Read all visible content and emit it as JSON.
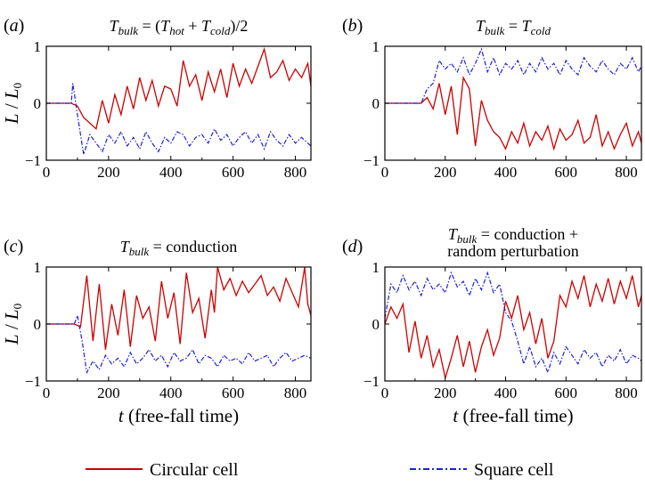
{
  "colors": {
    "circular": "#cc0000",
    "square": "#1f1fd6",
    "axis": "#000000"
  },
  "legend": {
    "circular": "Circular cell",
    "square": "Square cell"
  },
  "panels": [
    {
      "label": "(a)",
      "title": [
        "T",
        "bulk",
        " = (",
        "T",
        "hot",
        " + ",
        "T",
        "cold",
        ")/2"
      ]
    },
    {
      "label": "(b)",
      "title": [
        "T",
        "bulk",
        " = ",
        "T",
        "cold"
      ]
    },
    {
      "label": "(c)",
      "title": [
        "T",
        "bulk",
        " = conduction"
      ]
    },
    {
      "label": "(d)",
      "title": [
        "T",
        "bulk",
        " = conduction +"
      ],
      "title2": "random perturbation"
    }
  ],
  "ylabel": {
    "main": "L",
    "sep": " / ",
    "den": "L",
    "sub": "0"
  },
  "xlabel": {
    "main": "t",
    "rest": " (free-fall time)"
  },
  "chart_data": [
    {
      "type": "line",
      "panel": "a",
      "xlim": [
        0,
        850
      ],
      "ylim": [
        -1,
        1
      ],
      "xticks": [
        0,
        200,
        400,
        600,
        800
      ],
      "yticks": [
        -1,
        0,
        1
      ],
      "series": [
        {
          "name": "Circular cell",
          "x": [
            0,
            80,
            100,
            120,
            140,
            160,
            180,
            200,
            220,
            240,
            260,
            280,
            300,
            320,
            340,
            360,
            380,
            400,
            420,
            440,
            460,
            480,
            500,
            520,
            540,
            560,
            580,
            600,
            620,
            640,
            660,
            680,
            700,
            720,
            740,
            760,
            780,
            800,
            820,
            840,
            850
          ],
          "y": [
            0,
            0,
            -0.05,
            -0.25,
            -0.35,
            -0.45,
            0.05,
            -0.35,
            0.15,
            -0.2,
            0.3,
            -0.1,
            0.45,
            0.05,
            0.4,
            -0.05,
            0.3,
            0.25,
            -0.05,
            0.75,
            0.3,
            0.5,
            0.05,
            0.55,
            0.2,
            0.6,
            0.1,
            0.7,
            0.3,
            0.6,
            0.35,
            0.65,
            0.95,
            0.45,
            0.55,
            0.75,
            0.4,
            0.6,
            0.45,
            0.7,
            0.3
          ]
        },
        {
          "name": "Square cell",
          "x": [
            0,
            80,
            85,
            100,
            120,
            140,
            160,
            180,
            200,
            220,
            240,
            260,
            280,
            300,
            320,
            340,
            360,
            380,
            400,
            420,
            440,
            460,
            480,
            500,
            520,
            540,
            560,
            580,
            600,
            620,
            640,
            660,
            680,
            700,
            720,
            740,
            760,
            780,
            800,
            820,
            850
          ],
          "y": [
            0,
            0,
            0.35,
            -0.2,
            -0.9,
            -0.55,
            -0.7,
            -0.85,
            -0.55,
            -0.7,
            -0.5,
            -0.75,
            -0.6,
            -0.8,
            -0.5,
            -0.7,
            -0.85,
            -0.6,
            -0.7,
            -0.5,
            -0.55,
            -0.75,
            -0.6,
            -0.55,
            -0.7,
            -0.45,
            -0.65,
            -0.55,
            -0.75,
            -0.6,
            -0.5,
            -0.7,
            -0.55,
            -0.8,
            -0.5,
            -0.65,
            -0.75,
            -0.55,
            -0.7,
            -0.6,
            -0.75
          ]
        }
      ]
    },
    {
      "type": "line",
      "panel": "b",
      "xlim": [
        0,
        850
      ],
      "ylim": [
        -1,
        1
      ],
      "xticks": [
        0,
        200,
        400,
        600,
        800
      ],
      "yticks": [
        -1,
        0,
        1
      ],
      "series": [
        {
          "name": "Circular cell",
          "x": [
            0,
            120,
            140,
            160,
            180,
            200,
            220,
            240,
            260,
            280,
            300,
            320,
            340,
            360,
            380,
            400,
            420,
            440,
            460,
            480,
            500,
            520,
            540,
            560,
            580,
            600,
            620,
            640,
            660,
            680,
            700,
            720,
            740,
            760,
            780,
            800,
            820,
            840,
            850
          ],
          "y": [
            0,
            0,
            0.1,
            -0.1,
            0.35,
            -0.2,
            0.3,
            -0.55,
            0.45,
            0.25,
            -0.75,
            0.05,
            -0.3,
            -0.5,
            -0.6,
            -0.8,
            -0.5,
            -0.7,
            -0.35,
            -0.75,
            -0.5,
            -0.65,
            -0.4,
            -0.8,
            -0.45,
            -0.65,
            -0.55,
            -0.3,
            -0.7,
            -0.6,
            -0.2,
            -0.75,
            -0.5,
            -0.8,
            -0.55,
            -0.35,
            -0.75,
            -0.5,
            -0.7
          ]
        },
        {
          "name": "Square cell",
          "x": [
            0,
            120,
            140,
            160,
            180,
            200,
            220,
            240,
            260,
            280,
            300,
            320,
            340,
            360,
            380,
            400,
            420,
            440,
            460,
            480,
            500,
            520,
            540,
            560,
            580,
            600,
            620,
            640,
            660,
            680,
            700,
            720,
            740,
            760,
            780,
            800,
            820,
            840,
            850
          ],
          "y": [
            0,
            0,
            0.25,
            0.35,
            0.75,
            0.6,
            0.7,
            0.55,
            0.8,
            0.5,
            0.7,
            0.95,
            0.55,
            0.8,
            0.5,
            0.7,
            0.6,
            0.75,
            0.5,
            0.7,
            0.55,
            0.8,
            0.6,
            0.7,
            0.5,
            0.75,
            0.6,
            0.5,
            0.8,
            0.65,
            0.55,
            0.75,
            0.6,
            0.5,
            0.7,
            0.6,
            0.8,
            0.55,
            0.65
          ]
        }
      ]
    },
    {
      "type": "line",
      "panel": "c",
      "xlim": [
        0,
        850
      ],
      "ylim": [
        -1,
        1
      ],
      "xticks": [
        0,
        200,
        400,
        600,
        800
      ],
      "yticks": [
        -1,
        0,
        1
      ],
      "series": [
        {
          "name": "Circular cell",
          "x": [
            0,
            90,
            110,
            130,
            150,
            170,
            190,
            210,
            230,
            250,
            270,
            290,
            310,
            330,
            350,
            370,
            390,
            410,
            430,
            450,
            470,
            490,
            510,
            530,
            540,
            550,
            570,
            590,
            610,
            630,
            650,
            670,
            690,
            710,
            730,
            750,
            770,
            790,
            810,
            830,
            840,
            850
          ],
          "y": [
            0,
            0,
            -0.05,
            0.85,
            -0.3,
            0.7,
            -0.45,
            0.35,
            -0.2,
            0.6,
            -0.4,
            0.5,
            0.1,
            0.3,
            -0.3,
            0.75,
            0.1,
            0.55,
            -0.35,
            0.9,
            0.2,
            0.45,
            -0.25,
            0.6,
            0.2,
            1.0,
            0.6,
            0.8,
            0.5,
            0.75,
            0.55,
            0.7,
            0.85,
            0.5,
            0.65,
            0.4,
            0.8,
            0.55,
            0.3,
            1.0,
            0.35,
            0.15
          ]
        },
        {
          "name": "Square cell",
          "x": [
            0,
            90,
            100,
            115,
            130,
            150,
            170,
            190,
            210,
            230,
            250,
            270,
            290,
            310,
            330,
            350,
            370,
            390,
            410,
            430,
            450,
            470,
            490,
            510,
            530,
            550,
            570,
            590,
            610,
            630,
            650,
            670,
            690,
            710,
            730,
            750,
            770,
            790,
            810,
            830,
            850
          ],
          "y": [
            0,
            0,
            0.15,
            -0.3,
            -0.85,
            -0.65,
            -0.8,
            -0.55,
            -0.7,
            -0.6,
            -0.75,
            -0.5,
            -0.7,
            -0.6,
            -0.45,
            -0.65,
            -0.55,
            -0.75,
            -0.5,
            -0.65,
            -0.6,
            -0.45,
            -0.7,
            -0.55,
            -0.6,
            -0.75,
            -0.55,
            -0.65,
            -0.6,
            -0.7,
            -0.5,
            -0.65,
            -0.6,
            -0.55,
            -0.75,
            -0.6,
            -0.5,
            -0.65,
            -0.6,
            -0.55,
            -0.6
          ]
        }
      ]
    },
    {
      "type": "line",
      "panel": "d",
      "xlim": [
        0,
        850
      ],
      "ylim": [
        -1,
        1
      ],
      "xticks": [
        0,
        200,
        400,
        600,
        800
      ],
      "yticks": [
        -1,
        0,
        1
      ],
      "series": [
        {
          "name": "Circular cell",
          "x": [
            0,
            20,
            40,
            60,
            80,
            100,
            120,
            140,
            160,
            180,
            200,
            220,
            240,
            260,
            280,
            300,
            320,
            340,
            360,
            380,
            400,
            420,
            440,
            460,
            480,
            500,
            520,
            540,
            560,
            580,
            600,
            620,
            640,
            660,
            680,
            700,
            720,
            740,
            760,
            780,
            800,
            820,
            840,
            850
          ],
          "y": [
            0,
            0.3,
            0.1,
            0.35,
            -0.5,
            0.05,
            -0.6,
            -0.2,
            -0.75,
            -0.45,
            -0.95,
            -0.6,
            -0.2,
            -0.75,
            -0.3,
            -0.85,
            -0.4,
            -0.1,
            -0.55,
            -0.25,
            0.4,
            0.1,
            0.5,
            -0.1,
            0.2,
            -0.35,
            0.1,
            -0.6,
            -0.3,
            0.5,
            0.3,
            0.75,
            0.45,
            0.85,
            0.3,
            0.7,
            0.4,
            0.8,
            0.35,
            0.75,
            0.45,
            0.85,
            0.3,
            0.5
          ]
        },
        {
          "name": "Square cell",
          "x": [
            0,
            20,
            40,
            60,
            80,
            100,
            120,
            140,
            160,
            180,
            200,
            220,
            240,
            260,
            280,
            300,
            320,
            340,
            360,
            380,
            400,
            420,
            440,
            460,
            480,
            500,
            520,
            540,
            560,
            580,
            600,
            620,
            640,
            660,
            680,
            700,
            720,
            740,
            760,
            780,
            800,
            820,
            840,
            850
          ],
          "y": [
            0.1,
            0.7,
            0.55,
            0.85,
            0.6,
            0.75,
            0.5,
            0.8,
            0.6,
            0.7,
            0.55,
            0.9,
            0.65,
            0.75,
            0.5,
            0.8,
            0.6,
            0.9,
            0.55,
            0.7,
            0.2,
            0.05,
            -0.3,
            -0.7,
            -0.4,
            -0.75,
            -0.6,
            -0.85,
            -0.5,
            -0.7,
            -0.4,
            -0.55,
            -0.7,
            -0.45,
            -0.6,
            -0.5,
            -0.75,
            -0.55,
            -0.65,
            -0.45,
            -0.7,
            -0.55,
            -0.6,
            -0.65
          ]
        }
      ]
    }
  ]
}
